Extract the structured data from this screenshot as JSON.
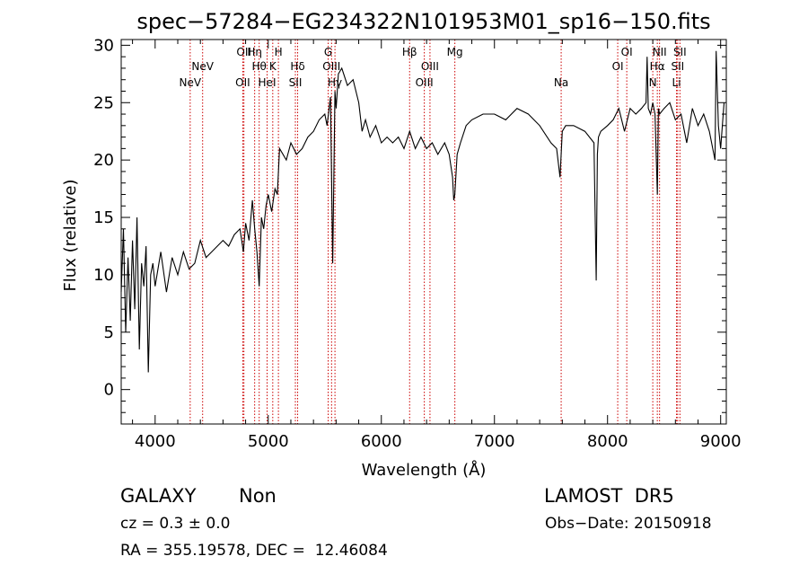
{
  "chart_data": {
    "type": "line",
    "title": "spec−57284−EG234322N101953M01_sp16−150.fits",
    "xlabel": "Wavelength (Å)",
    "ylabel": "Flux (relative)",
    "xlim": [
      3700,
      9050
    ],
    "ylim": [
      -3,
      30.5
    ],
    "xticks": [
      4000,
      5000,
      6000,
      7000,
      8000,
      9000
    ],
    "yticks": [
      0,
      5,
      10,
      15,
      20,
      25,
      30
    ],
    "grid": false,
    "series": [
      {
        "x": [
          3700,
          3720,
          3740,
          3760,
          3780,
          3800,
          3820,
          3840,
          3860,
          3880,
          3900,
          3920,
          3940,
          3960,
          3980,
          4000,
          4050,
          4100,
          4150,
          4200,
          4250,
          4300,
          4350,
          4400,
          4450,
          4500,
          4550,
          4600,
          4650,
          4700,
          4750,
          4780,
          4800,
          4830,
          4860,
          4880,
          4900,
          4920,
          4940,
          4960,
          4980,
          5000,
          5030,
          5060,
          5080,
          5100,
          5130,
          5160,
          5200,
          5250,
          5300,
          5350,
          5400,
          5450,
          5500,
          5520,
          5550,
          5570,
          5590,
          5600,
          5620,
          5650,
          5700,
          5750,
          5800,
          5830,
          5860,
          5900,
          5950,
          6000,
          6050,
          6100,
          6150,
          6200,
          6250,
          6300,
          6350,
          6400,
          6450,
          6500,
          6560,
          6600,
          6630,
          6640,
          6650,
          6670,
          6700,
          6750,
          6800,
          6900,
          7000,
          7100,
          7200,
          7300,
          7400,
          7500,
          7550,
          7580,
          7600,
          7630,
          7700,
          7800,
          7880,
          7900,
          7910,
          7920,
          7940,
          8000,
          8050,
          8100,
          8150,
          8200,
          8250,
          8300,
          8340,
          8350,
          8360,
          8380,
          8400,
          8420,
          8440,
          8450,
          8460,
          8500,
          8550,
          8600,
          8650,
          8700,
          8750,
          8800,
          8850,
          8900,
          8950,
          8960,
          8980,
          9000,
          9030
        ],
        "y": [
          8.5,
          14.0,
          5.0,
          11.5,
          6.0,
          13.0,
          7.0,
          15.0,
          3.5,
          11.0,
          9.0,
          12.5,
          1.5,
          10.0,
          11.0,
          9.0,
          12.0,
          8.5,
          11.5,
          10.0,
          12.0,
          10.5,
          11.0,
          13.0,
          11.5,
          12.0,
          12.5,
          13.0,
          12.5,
          13.5,
          14.0,
          12.0,
          14.5,
          13.0,
          16.5,
          14.0,
          12.0,
          9.0,
          15.0,
          14.0,
          16.0,
          17.0,
          15.5,
          17.5,
          17.0,
          21.0,
          20.5,
          20.0,
          21.5,
          20.5,
          21.0,
          22.0,
          22.5,
          23.5,
          24.0,
          23.0,
          25.5,
          11.0,
          26.0,
          24.5,
          27.5,
          28.0,
          26.5,
          27.0,
          25.0,
          22.5,
          23.5,
          22.0,
          23.0,
          21.5,
          22.0,
          21.5,
          22.0,
          21.0,
          22.5,
          21.0,
          22.0,
          21.0,
          21.5,
          20.5,
          21.5,
          20.5,
          18.5,
          16.5,
          17.0,
          20.5,
          21.5,
          23.0,
          23.5,
          24.0,
          24.0,
          23.5,
          24.5,
          24.0,
          23.0,
          21.5,
          21.0,
          18.5,
          22.5,
          23.0,
          23.0,
          22.5,
          21.5,
          9.5,
          20.5,
          22.0,
          22.5,
          23.0,
          23.5,
          24.5,
          22.5,
          24.5,
          24.0,
          24.5,
          25.0,
          29.0,
          24.5,
          24.0,
          25.0,
          24.0,
          17.0,
          24.5,
          24.0,
          24.5,
          25.0,
          23.5,
          24.0,
          21.5,
          24.5,
          23.0,
          24.0,
          22.5,
          20.0,
          29.5,
          23.0,
          21.0,
          25.0
        ]
      }
    ],
    "line_markers": [
      {
        "label": "NeV",
        "x": 4310,
        "row": 3
      },
      {
        "label": "NeV",
        "x": 4420,
        "row": 2
      },
      {
        "label": "OII",
        "x": 4785,
        "row": 1
      },
      {
        "label": "OII",
        "x": 4775,
        "row": 3
      },
      {
        "label": "Hη",
        "x": 4880,
        "row": 1
      },
      {
        "label": "Hθ",
        "x": 4920,
        "row": 2
      },
      {
        "label": "H",
        "x": 5090,
        "row": 1
      },
      {
        "label": "K",
        "x": 5040,
        "row": 2
      },
      {
        "label": "HeI",
        "x": 4990,
        "row": 3
      },
      {
        "label": "Hδ",
        "x": 5260,
        "row": 2
      },
      {
        "label": "SII",
        "x": 5240,
        "row": 3
      },
      {
        "label": "G",
        "x": 5530,
        "row": 1
      },
      {
        "label": "OIII",
        "x": 5560,
        "row": 2
      },
      {
        "label": "Hγ",
        "x": 5590,
        "row": 3
      },
      {
        "label": "Hβ",
        "x": 6250,
        "row": 1
      },
      {
        "label": "OIII",
        "x": 6430,
        "row": 2
      },
      {
        "label": "OIII",
        "x": 6380,
        "row": 3
      },
      {
        "label": "Mg",
        "x": 6650,
        "row": 1
      },
      {
        "label": "Na",
        "x": 7590,
        "row": 3
      },
      {
        "label": "OI",
        "x": 8170,
        "row": 1
      },
      {
        "label": "OI",
        "x": 8090,
        "row": 2
      },
      {
        "label": "NII",
        "x": 8460,
        "row": 1
      },
      {
        "label": "Hα",
        "x": 8440,
        "row": 2
      },
      {
        "label": "N",
        "x": 8400,
        "row": 3
      },
      {
        "label": "SII",
        "x": 8640,
        "row": 1
      },
      {
        "label": "SII",
        "x": 8620,
        "row": 2
      },
      {
        "label": "Li",
        "x": 8610,
        "row": 3
      }
    ]
  },
  "info": {
    "object_class": "GALAXY",
    "subclass": "Non",
    "survey": "LAMOST  DR5",
    "cz": "cz = 0.3 ± 0.0",
    "obs_date": "Obs−Date: 20150918",
    "coords": "RA = 355.19578, DEC =  12.46084"
  },
  "colors": {
    "spectrum": "#000000",
    "marker_lines": "#cc0000",
    "axes": "#000000"
  }
}
